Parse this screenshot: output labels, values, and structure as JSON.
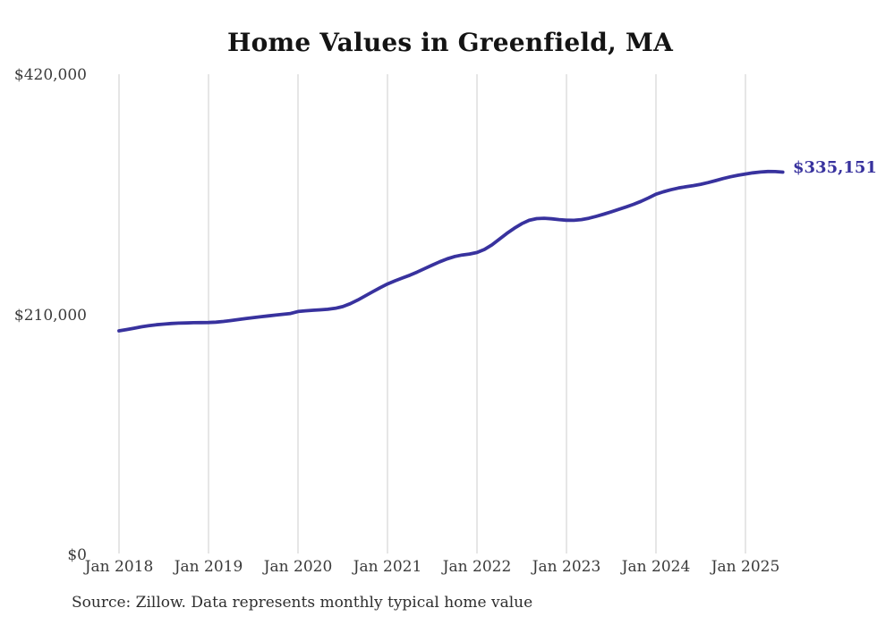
{
  "chart_data": {
    "type": "line",
    "title": "Home Values in Greenfield, MA",
    "source_note": "Source: Zillow. Data represents monthly typical home value",
    "series_name": "Monthly typical home value",
    "end_label": "$335,151",
    "end_value": 335151,
    "line_color": "#38329e",
    "grid_color": "#cccccc",
    "grid": "vertical-only",
    "legend": "none",
    "ylim": [
      0,
      420000
    ],
    "y_ticks": [
      {
        "label": "$0",
        "value": 0
      },
      {
        "label": "$210,000",
        "value": 210000
      },
      {
        "label": "$420,000",
        "value": 420000
      }
    ],
    "x_tick_labels": [
      "Jan 2018",
      "Jan 2019",
      "Jan 2020",
      "Jan 2021",
      "Jan 2022",
      "Jan 2023",
      "Jan 2024",
      "Jan 2025"
    ],
    "months": [
      "2018-01",
      "2018-02",
      "2018-03",
      "2018-04",
      "2018-05",
      "2018-06",
      "2018-07",
      "2018-08",
      "2018-09",
      "2018-10",
      "2018-11",
      "2018-12",
      "2019-01",
      "2019-02",
      "2019-03",
      "2019-04",
      "2019-05",
      "2019-06",
      "2019-07",
      "2019-08",
      "2019-09",
      "2019-10",
      "2019-11",
      "2019-12",
      "2020-01",
      "2020-02",
      "2020-03",
      "2020-04",
      "2020-05",
      "2020-06",
      "2020-07",
      "2020-08",
      "2020-09",
      "2020-10",
      "2020-11",
      "2020-12",
      "2021-01",
      "2021-02",
      "2021-03",
      "2021-04",
      "2021-05",
      "2021-06",
      "2021-07",
      "2021-08",
      "2021-09",
      "2021-10",
      "2021-11",
      "2021-12",
      "2022-01",
      "2022-02",
      "2022-03",
      "2022-04",
      "2022-05",
      "2022-06",
      "2022-07",
      "2022-08",
      "2022-09",
      "2022-10",
      "2022-11",
      "2022-12",
      "2023-01",
      "2023-02",
      "2023-03",
      "2023-04",
      "2023-05",
      "2023-06",
      "2023-07",
      "2023-08",
      "2023-09",
      "2023-10",
      "2023-11",
      "2023-12",
      "2024-01",
      "2024-02",
      "2024-03",
      "2024-04",
      "2024-05",
      "2024-06",
      "2024-07",
      "2024-08",
      "2024-09",
      "2024-10",
      "2024-11",
      "2024-12",
      "2025-01",
      "2025-02",
      "2025-03",
      "2025-04",
      "2025-05",
      "2025-06"
    ],
    "values": [
      196300,
      197400,
      198600,
      199800,
      200800,
      201600,
      202200,
      202700,
      203000,
      203200,
      203400,
      203500,
      203600,
      203900,
      204500,
      205300,
      206200,
      207100,
      207900,
      208700,
      209400,
      210100,
      210800,
      211500,
      213200,
      213800,
      214300,
      214700,
      215200,
      216000,
      217500,
      220000,
      223200,
      226800,
      230400,
      234000,
      237300,
      240000,
      242500,
      245000,
      247800,
      250800,
      253800,
      256700,
      259300,
      261300,
      262600,
      263500,
      264800,
      267500,
      271500,
      276500,
      281500,
      286000,
      290000,
      293000,
      294500,
      294800,
      294300,
      293600,
      293100,
      293000,
      293600,
      294800,
      296500,
      298400,
      300400,
      302500,
      304700,
      307000,
      309600,
      312600,
      315800,
      317900,
      319700,
      321200,
      322300,
      323300,
      324500,
      326000,
      327700,
      329500,
      331100,
      332400,
      333500,
      334500,
      335200,
      335700,
      335600,
      335151
    ]
  }
}
